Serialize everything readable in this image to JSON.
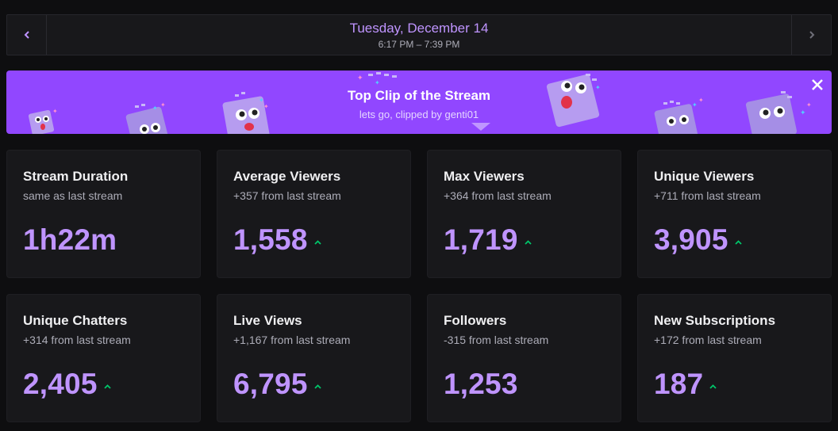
{
  "date_nav": {
    "date": "Tuesday, December 14",
    "time_range": "6:17 PM – 7:39 PM"
  },
  "banner": {
    "title": "Top Clip of the Stream",
    "subtitle": "lets go, clipped by genti01"
  },
  "stats": [
    {
      "title": "Stream Duration",
      "subtitle": "same as last stream",
      "value": "1h22m",
      "trend": "none"
    },
    {
      "title": "Average Viewers",
      "subtitle": "+357 from last stream",
      "value": "1,558",
      "trend": "up"
    },
    {
      "title": "Max Viewers",
      "subtitle": "+364 from last stream",
      "value": "1,719",
      "trend": "up"
    },
    {
      "title": "Unique Viewers",
      "subtitle": "+711 from last stream",
      "value": "3,905",
      "trend": "up"
    },
    {
      "title": "Unique Chatters",
      "subtitle": "+314 from last stream",
      "value": "2,405",
      "trend": "up"
    },
    {
      "title": "Live Views",
      "subtitle": "+1,167 from last stream",
      "value": "6,795",
      "trend": "up"
    },
    {
      "title": "Followers",
      "subtitle": "-315 from last stream",
      "value": "1,253",
      "trend": "none"
    },
    {
      "title": "New Subscriptions",
      "subtitle": "+172 from last stream",
      "value": "187",
      "trend": "up"
    }
  ],
  "colors": {
    "background": "#0e0e10",
    "card": "#18181b",
    "accent": "#bf94ff",
    "banner": "#9147ff",
    "trend_up": "#00c56a"
  },
  "icons": {
    "prev": "chevron-left-icon",
    "next": "chevron-right-icon",
    "close": "close-icon",
    "trend_up": "arrow-up-icon"
  }
}
